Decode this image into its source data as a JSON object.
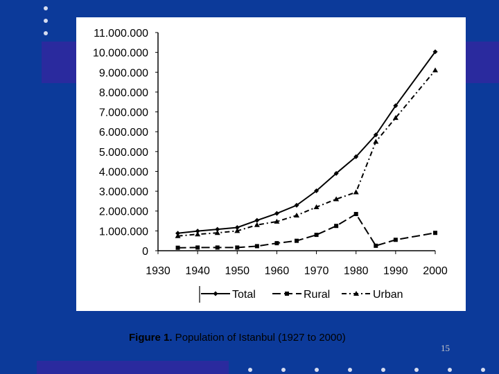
{
  "slide": {
    "caption_bold": "Figure 1.",
    "caption_text": " Population of  Istanbul (1927 to 2000)",
    "page_number": "15",
    "colors": {
      "background": "#0c3a9a",
      "accent_band": "#2a2a9e",
      "panel": "#ffffff",
      "series": "#000000"
    }
  },
  "chart_data": {
    "type": "line",
    "title": "",
    "xlabel": "",
    "ylabel": "",
    "xlim": [
      1930,
      2000
    ],
    "ylim": [
      0,
      11000000
    ],
    "x_ticks": [
      1930,
      1940,
      1950,
      1960,
      1970,
      1980,
      1990,
      2000
    ],
    "x_tick_labels": [
      "1930",
      "1940",
      "1950",
      "1960",
      "1970",
      "1980",
      "1990",
      "2000"
    ],
    "y_ticks": [
      0,
      1000000,
      2000000,
      3000000,
      4000000,
      5000000,
      6000000,
      7000000,
      8000000,
      9000000,
      10000000,
      11000000
    ],
    "y_tick_labels": [
      "0",
      "1.000.000",
      "2.000.000",
      "3.000.000",
      "4.000.000",
      "5.000.000",
      "6.000.000",
      "7.000.000",
      "8.000.000",
      "9.000.000",
      "10.000.000",
      "11.000.000"
    ],
    "grid": false,
    "legend_position": "bottom",
    "series": [
      {
        "name": "Total",
        "style": "solid",
        "marker": "diamond",
        "x": [
          1935,
          1940,
          1945,
          1950,
          1955,
          1960,
          1965,
          1970,
          1975,
          1980,
          1985,
          1990,
          2000
        ],
        "y": [
          880000,
          990000,
          1080000,
          1170000,
          1530000,
          1880000,
          2290000,
          3020000,
          3900000,
          4740000,
          5840000,
          7310000,
          10030000
        ]
      },
      {
        "name": "Rural",
        "style": "dash",
        "marker": "square",
        "x": [
          1935,
          1940,
          1945,
          1950,
          1955,
          1960,
          1965,
          1970,
          1975,
          1980,
          1985,
          1990,
          2000
        ],
        "y": [
          150000,
          160000,
          160000,
          160000,
          230000,
          380000,
          500000,
          800000,
          1250000,
          1850000,
          250000,
          550000,
          900000
        ]
      },
      {
        "name": "Urban",
        "style": "dashdot",
        "marker": "triangle",
        "x": [
          1935,
          1940,
          1945,
          1950,
          1955,
          1960,
          1965,
          1970,
          1975,
          1980,
          1985,
          1990,
          2000
        ],
        "y": [
          740000,
          830000,
          900000,
          1000000,
          1300000,
          1470000,
          1780000,
          2200000,
          2600000,
          2950000,
          5500000,
          6700000,
          9100000
        ]
      }
    ]
  }
}
